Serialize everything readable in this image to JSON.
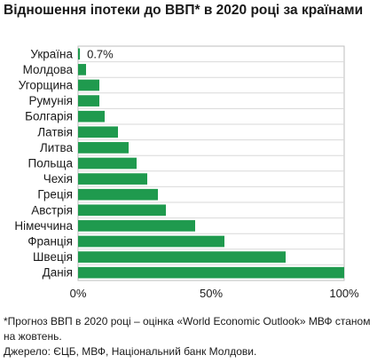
{
  "chart_data": {
    "type": "bar",
    "orientation": "horizontal",
    "title": "Відношення іпотеки до ВВП* в 2020 році за країнами",
    "categories": [
      "Україна",
      "Молдова",
      "Угорщина",
      "Румунія",
      "Болгарія",
      "Латвія",
      "Литва",
      "Польща",
      "Чехія",
      "Греція",
      "Австрія",
      "Німеччина",
      "Франція",
      "Швеція",
      "Данія"
    ],
    "values": [
      0.7,
      3,
      8,
      8,
      10,
      15,
      19,
      22,
      26,
      30,
      33,
      44,
      55,
      78,
      100
    ],
    "value_label": "0.7%",
    "xlim": [
      0,
      100
    ],
    "xticks": [
      "0%",
      "50%",
      "100%"
    ],
    "bar_color": "#1f9a4e",
    "grid": true,
    "legend": "none"
  },
  "footnote": "*Прогноз ВВП в 2020 році – оцінка «World Economic Outlook» МВФ станом на жовтень.",
  "source": "Джерело: ЄЦБ, МВФ, Національний банк Молдови."
}
